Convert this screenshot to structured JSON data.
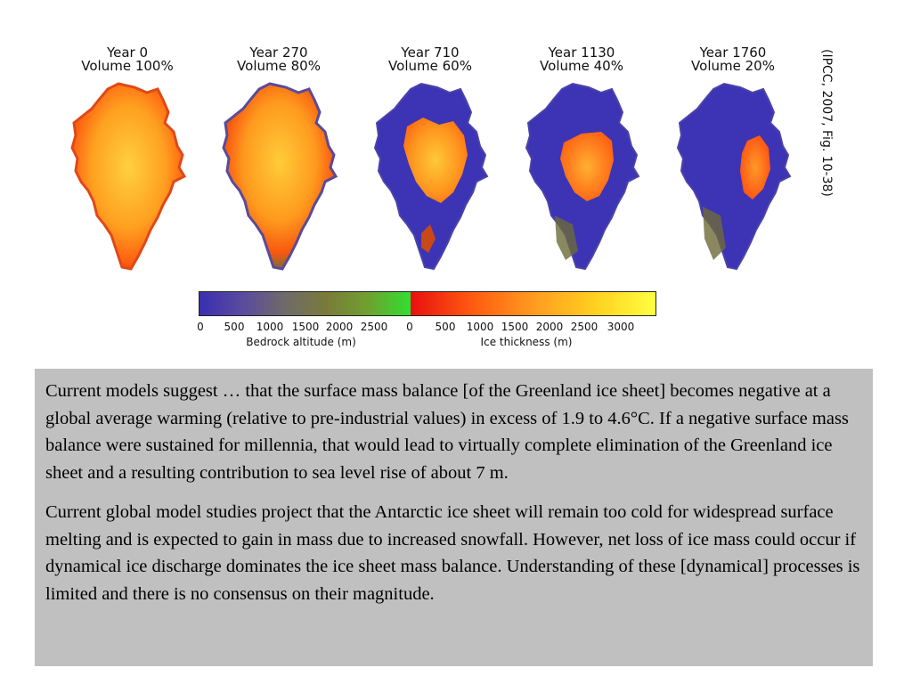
{
  "panels": [
    {
      "year": "Year 0",
      "volume": "Volume 100%"
    },
    {
      "year": "Year 270",
      "volume": "Volume 80%"
    },
    {
      "year": "Year 710",
      "volume": "Volume 60%"
    },
    {
      "year": "Year 1130",
      "volume": "Volume 40%"
    },
    {
      "year": "Year 1760",
      "volume": "Volume 20%"
    }
  ],
  "citation": "(IPCC, 2007, Fig. 10-38)",
  "colorbar": {
    "bedrock_ticks": [
      "0",
      "500",
      "1000",
      "1500",
      "2000",
      "2500"
    ],
    "ice_ticks": [
      "0",
      "500",
      "1000",
      "1500",
      "2000",
      "2500",
      "3000"
    ],
    "bedrock_label": "Bedrock altitude (m)",
    "ice_label": "Ice thickness (m)",
    "bedrock_colors": [
      "#3a2fb0",
      "#5a4aa0",
      "#6e6a6a",
      "#7a7a3a",
      "#70a030",
      "#30e030"
    ],
    "ice_colors": [
      "#e81010",
      "#ff5a10",
      "#ff9a20",
      "#ffd020",
      "#ffff40"
    ]
  },
  "paragraphs": [
    "Current models suggest … that the surface mass balance [of the Greenland ice sheet] becomes negative at a global average warming (relative to pre-industrial values) in excess of 1.9 to 4.6°C. If a negative surface mass balance were sustained for millennia, that would lead to virtually complete elimination of the Greenland ice sheet and a resulting contribution to sea level rise of about 7 m.",
    "Current global model studies project that the Antarctic ice sheet will remain too cold for widespread surface melting and is expected to gain in mass due to increased snowfall. However, net loss of ice mass could occur if dynamical ice discharge dominates the ice sheet mass balance. Understanding of these [dynamical] processes is limited and there is no consensus on their magnitude."
  ]
}
